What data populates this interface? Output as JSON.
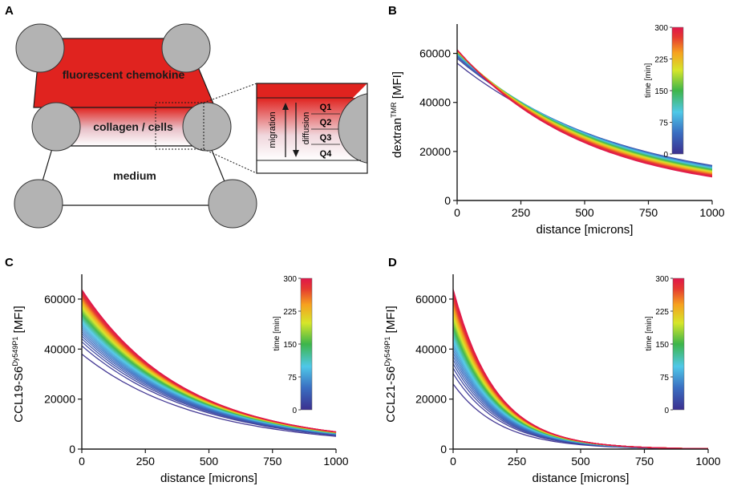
{
  "panel_letters": {
    "a": "A",
    "b": "B",
    "c": "C",
    "d": "D"
  },
  "schematic": {
    "top_chamber": "fluorescent chemokine",
    "middle_chamber": "collagen / cells",
    "bottom_chamber": "medium",
    "inset": {
      "quadrants": [
        "Q1",
        "Q2",
        "Q3",
        "Q4"
      ],
      "migration": "migration",
      "diffusion": "diffusion"
    }
  },
  "colors": {
    "chemokine_red": "#e0231f",
    "chamber_gray": "#b3b3b3",
    "colorbar": [
      "#3b2f8f",
      "#3a6fc2",
      "#4fc8e8",
      "#3db54a",
      "#d6e62a",
      "#f6a11f",
      "#e53a30",
      "#e0164a"
    ]
  },
  "chart_data": [
    {
      "type": "line",
      "panel": "B",
      "xlabel": "distance [microns]",
      "ylabel": {
        "base": "dextran",
        "sup": "TMR",
        "suffix": " [MFI]"
      },
      "xlim": [
        0,
        1000
      ],
      "ylim": [
        0,
        70000
      ],
      "xticks": [
        0,
        250,
        500,
        750,
        1000
      ],
      "yticks": [
        0,
        20000,
        40000,
        60000
      ],
      "colorbar": {
        "label": "time [min]",
        "ticks": [
          0,
          75,
          150,
          225,
          300
        ],
        "range": [
          0,
          300
        ]
      },
      "series_summary": {
        "count": 26,
        "time_range": [
          0,
          300
        ],
        "y_at_0": [
          52500,
          60000
        ],
        "y_at_1000": [
          8000,
          13000
        ]
      }
    },
    {
      "type": "line",
      "panel": "C",
      "xlabel": "distance [microns]",
      "ylabel": {
        "base": "CCL19-S6",
        "sup": "Dy549P1",
        "suffix": " [MFI]"
      },
      "xlim": [
        0,
        1000
      ],
      "ylim": [
        0,
        68000
      ],
      "xticks": [
        0,
        250,
        500,
        750,
        1000
      ],
      "yticks": [
        0,
        20000,
        40000,
        60000
      ],
      "colorbar": {
        "label": "time [min]",
        "ticks": [
          0,
          75,
          150,
          225,
          300
        ],
        "range": [
          0,
          300
        ]
      },
      "series_summary": {
        "count": 40,
        "time_range": [
          0,
          300
        ],
        "y_at_0": [
          37000,
          63000
        ],
        "y_at_1000": [
          3500,
          7500
        ]
      }
    },
    {
      "type": "line",
      "panel": "D",
      "xlabel": "distance [microns]",
      "ylabel": {
        "base": "CCL21-S6",
        "sup": "Dy549P1",
        "suffix": " [MFI]"
      },
      "xlim": [
        0,
        1000
      ],
      "ylim": [
        0,
        68000
      ],
      "xticks": [
        0,
        250,
        500,
        750,
        1000
      ],
      "yticks": [
        0,
        20000,
        40000,
        60000
      ],
      "colorbar": {
        "label": "time [min]",
        "ticks": [
          0,
          75,
          150,
          225,
          300
        ],
        "range": [
          0,
          300
        ]
      },
      "series_summary": {
        "count": 40,
        "time_range": [
          0,
          300
        ],
        "y_at_0": [
          26000,
          64000
        ],
        "y_at_1000": [
          200,
          600
        ]
      }
    }
  ]
}
